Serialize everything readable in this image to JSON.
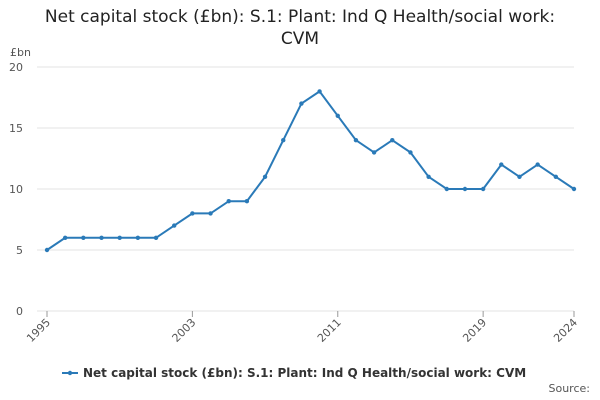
{
  "chart_data": {
    "type": "line",
    "title": "Net capital stock (£bn): S.1: Plant: Ind Q Health/social work: CVM",
    "y_label": "£bn",
    "source": "Source:",
    "x": [
      1995,
      1996,
      1997,
      1998,
      1999,
      2000,
      2001,
      2002,
      2003,
      2004,
      2005,
      2006,
      2007,
      2008,
      2009,
      2010,
      2011,
      2012,
      2013,
      2014,
      2015,
      2016,
      2017,
      2018,
      2019,
      2020,
      2021,
      2022,
      2023,
      2024
    ],
    "series": [
      {
        "name": "Net capital stock (£bn): S.1: Plant: Ind Q Health/social work: CVM",
        "color": "#2a7ab8",
        "values": [
          5,
          6,
          6,
          6,
          6,
          6,
          6,
          7,
          8,
          8,
          9,
          9,
          11,
          14,
          17,
          18,
          16,
          14,
          13,
          14,
          13,
          11,
          10,
          10,
          10,
          12,
          11,
          12,
          11,
          10
        ]
      }
    ],
    "xlim": [
      1995,
      2024
    ],
    "xticks": [
      1995,
      2003,
      2011,
      2019,
      2024
    ],
    "ylim": [
      0,
      20
    ],
    "yticks": [
      0,
      5,
      10,
      15,
      20
    ],
    "grid": true,
    "legend": "bottom"
  }
}
